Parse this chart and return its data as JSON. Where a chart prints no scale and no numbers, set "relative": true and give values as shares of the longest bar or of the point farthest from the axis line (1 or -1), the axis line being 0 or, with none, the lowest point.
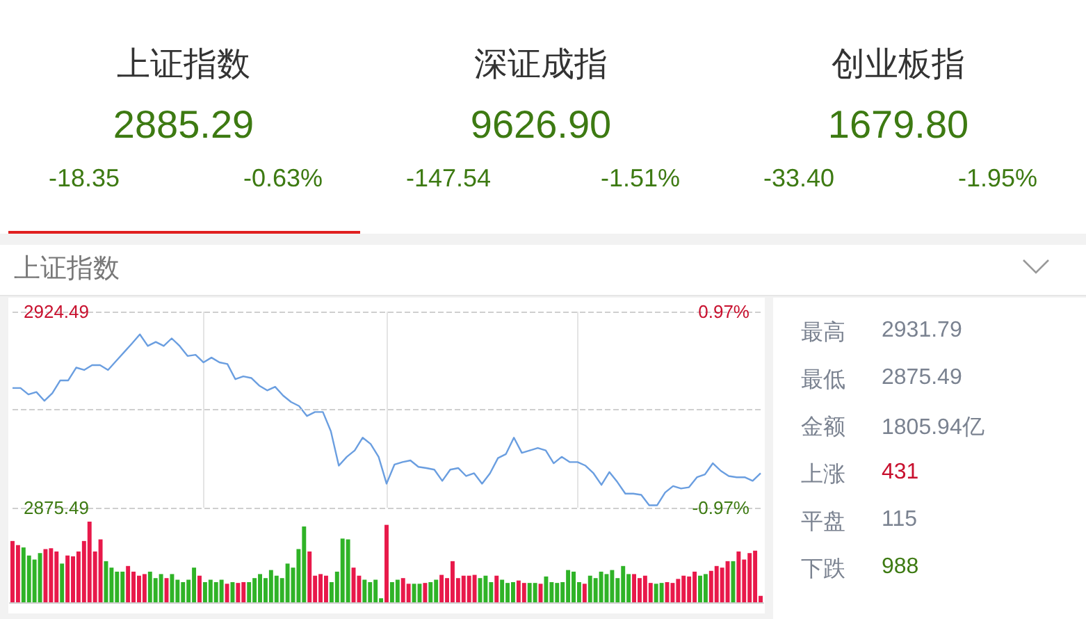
{
  "chart_data": [
    {
      "type": "other",
      "annotations": [
        "上证指数",
        "2885.29",
        "-18.35",
        "-0.63%",
        "深证成指",
        "9626.90",
        "-147.54",
        "-1.51%",
        "创业板指",
        "1679.80",
        "-33.40",
        "-1.95%",
        "上证指数"
      ]
    },
    {
      "type": "line",
      "categories": [
        null,
        null,
        null,
        null,
        null,
        null,
        null,
        null,
        null,
        null,
        null,
        null,
        null,
        null,
        null,
        null,
        null,
        null,
        null,
        null,
        null,
        null,
        null,
        null,
        null,
        null,
        null,
        null,
        null,
        null,
        null,
        null,
        null,
        null,
        null,
        null,
        null,
        null,
        null,
        null,
        null,
        null,
        null,
        null,
        null,
        null,
        null,
        null,
        null,
        null,
        null,
        null,
        null,
        null,
        null,
        null,
        null,
        null,
        null,
        null,
        null,
        null,
        null,
        null,
        null,
        null,
        null,
        null,
        null,
        null,
        null,
        null,
        null,
        null,
        null,
        null,
        null,
        null,
        null,
        null,
        null,
        null,
        null,
        null,
        null,
        null,
        null,
        null,
        null,
        null,
        null,
        null,
        null,
        null,
        null
      ],
      "series": [
        {
          "color": "#6a9ee0",
          "values": [
            2905.4,
            2905.4,
            2903.8,
            2904.4,
            2902.2,
            2904.1,
            2907.3,
            2907.3,
            2910.5,
            2909.9,
            2911.1,
            2911.1,
            2909.9,
            2912.1,
            2914.3,
            2916.5,
            2918.8,
            2915.9,
            2916.9,
            2915.9,
            2917.8,
            2915.9,
            2913.4,
            2913.7,
            2911.8,
            2913.0,
            2911.8,
            2911.4,
            2907.6,
            2908.3,
            2907.9,
            2906.0,
            2904.8,
            2905.7,
            2903.5,
            2901.9,
            2900.9,
            2898.4,
            2899.4,
            2899.4,
            2894.6,
            2886.0,
            2888.2,
            2889.8,
            2893.0,
            2891.4,
            2888.2,
            2881.5,
            2886.3,
            2886.9,
            2887.3,
            2885.7,
            2885.4,
            2885.0,
            2882.2,
            2885.0,
            2885.4,
            2883.4,
            2884.1,
            2881.5,
            2884.1,
            2887.9,
            2888.9,
            2893.0,
            2889.2,
            2889.8,
            2890.4,
            2889.8,
            2886.6,
            2888.2,
            2886.9,
            2886.9,
            2886.0,
            2884.1,
            2881.2,
            2884.4,
            2881.9,
            2879.0,
            2879.0,
            2878.7,
            2876.1,
            2876.1,
            2879.3,
            2880.9,
            2880.3,
            2880.6,
            2883.1,
            2883.8,
            2886.6,
            2884.7,
            2883.4,
            2883.1,
            2883.1,
            2882.2,
            2884.1
          ]
        }
      ],
      "ylim": [
        2875.49,
        2924.49
      ],
      "yticks": [
        2875.49,
        2924.49
      ],
      "ref_lines": [
        {
          "axis": "y",
          "value": 2899.99,
          "color": "#cfcfcf",
          "line_style": "dashed"
        }
      ],
      "y2lim": [
        -0.97,
        0.97
      ],
      "y2ticks": [
        {
          "value": -0.97,
          "label": "-0.97%"
        },
        {
          "value": 0.97,
          "label": "0.97%"
        }
      ],
      "grid": true,
      "marker": "none",
      "line_style": "solid"
    },
    {
      "type": "bar",
      "relative": true,
      "categories": [
        null,
        null,
        null,
        null,
        null,
        null,
        null,
        null,
        null,
        null,
        null,
        null,
        null,
        null,
        null,
        null,
        null,
        null,
        null,
        null,
        null,
        null,
        null,
        null,
        null,
        null,
        null,
        null,
        null,
        null,
        null,
        null,
        null,
        null,
        null,
        null,
        null,
        null,
        null,
        null,
        null,
        null,
        null,
        null,
        null,
        null,
        null,
        null,
        null,
        null,
        null,
        null,
        null,
        null,
        null,
        null,
        null,
        null,
        null,
        null,
        null,
        null,
        null,
        null,
        null,
        null,
        null,
        null,
        null,
        null,
        null,
        null,
        null,
        null,
        null,
        null,
        null,
        null,
        null,
        null,
        null,
        null,
        null,
        null,
        null,
        null,
        null,
        null,
        null,
        null,
        null,
        null,
        null,
        null,
        null,
        null,
        null,
        null,
        null,
        null,
        null,
        null,
        null,
        null,
        null,
        null,
        null,
        null,
        null,
        null,
        null,
        null,
        null,
        null,
        null,
        null,
        null,
        null,
        null,
        null,
        null,
        null,
        null,
        null,
        null,
        null,
        null,
        null,
        null,
        null,
        null,
        null,
        null,
        null,
        null,
        null,
        null
      ],
      "values": [
        0.76,
        0.71,
        0.68,
        0.58,
        0.53,
        0.61,
        0.66,
        0.67,
        0.63,
        0.48,
        0.58,
        0.57,
        0.63,
        0.76,
        1.0,
        0.63,
        0.78,
        0.51,
        0.43,
        0.38,
        0.38,
        0.45,
        0.38,
        0.33,
        0.35,
        0.38,
        0.3,
        0.35,
        0.3,
        0.35,
        0.28,
        0.25,
        0.28,
        0.43,
        0.33,
        0.25,
        0.28,
        0.25,
        0.28,
        0.23,
        0.25,
        0.24,
        0.25,
        0.25,
        0.3,
        0.35,
        0.3,
        0.4,
        0.33,
        0.3,
        0.48,
        0.43,
        0.66,
        0.94,
        0.63,
        0.33,
        0.35,
        0.33,
        0.25,
        0.38,
        0.79,
        0.78,
        0.43,
        0.33,
        0.28,
        0.25,
        0.28,
        0.05,
        0.96,
        0.25,
        0.28,
        0.3,
        0.23,
        0.23,
        0.23,
        0.24,
        0.25,
        0.28,
        0.34,
        0.3,
        0.51,
        0.3,
        0.33,
        0.33,
        0.34,
        0.3,
        0.33,
        0.25,
        0.33,
        0.28,
        0.24,
        0.25,
        0.27,
        0.24,
        0.24,
        0.24,
        0.23,
        0.32,
        0.25,
        0.24,
        0.25,
        0.4,
        0.38,
        0.25,
        0.23,
        0.33,
        0.3,
        0.38,
        0.35,
        0.4,
        0.3,
        0.45,
        0.35,
        0.35,
        0.3,
        0.33,
        0.24,
        0.23,
        0.24,
        0.25,
        0.24,
        0.29,
        0.33,
        0.32,
        0.38,
        0.33,
        0.35,
        0.39,
        0.45,
        0.43,
        0.51,
        0.51,
        0.63,
        0.53,
        0.61,
        0.64,
        0.08
      ],
      "colors": [
        "#e8194a",
        "#e8194a",
        "#2fb327",
        "#2fb327",
        "#2fb327",
        "#2fb327",
        "#e8194a",
        "#e8194a",
        "#e8194a",
        "#2fb327",
        "#e8194a",
        "#e8194a",
        "#e8194a",
        "#e8194a",
        "#e8194a",
        "#e8194a",
        "#e8194a",
        "#2fb327",
        "#2fb327",
        "#2fb327",
        "#2fb327",
        "#e8194a",
        "#e8194a",
        "#e8194a",
        "#e8194a",
        "#2fb327",
        "#2fb327",
        "#2fb327",
        "#e8194a",
        "#2fb327",
        "#2fb327",
        "#2fb327",
        "#2fb327",
        "#2fb327",
        "#e8194a",
        "#2fb327",
        "#2fb327",
        "#2fb327",
        "#2fb327",
        "#e8194a",
        "#2fb327",
        "#e8194a",
        "#e8194a",
        "#2fb327",
        "#2fb327",
        "#2fb327",
        "#2fb327",
        "#2fb327",
        "#2fb327",
        "#2fb327",
        "#2fb327",
        "#2fb327",
        "#2fb327",
        "#2fb327",
        "#e8194a",
        "#e8194a",
        "#e8194a",
        "#e8194a",
        "#2fb327",
        "#2fb327",
        "#2fb327",
        "#2fb327",
        "#e8194a",
        "#e8194a",
        "#2fb327",
        "#2fb327",
        "#2fb327",
        "#2fb327",
        "#e8194a",
        "#2fb327",
        "#2fb327",
        "#e8194a",
        "#e8194a",
        "#2fb327",
        "#2fb327",
        "#e8194a",
        "#2fb327",
        "#2fb327",
        "#e8194a",
        "#e8194a",
        "#e8194a",
        "#e8194a",
        "#e8194a",
        "#e8194a",
        "#e8194a",
        "#2fb327",
        "#2fb327",
        "#2fb327",
        "#e8194a",
        "#2fb327",
        "#2fb327",
        "#2fb327",
        "#e8194a",
        "#e8194a",
        "#2fb327",
        "#2fb327",
        "#e8194a",
        "#2fb327",
        "#2fb327",
        "#2fb327",
        "#2fb327",
        "#2fb327",
        "#2fb327",
        "#2fb327",
        "#e8194a",
        "#2fb327",
        "#2fb327",
        "#2fb327",
        "#2fb327",
        "#2fb327",
        "#2fb327",
        "#2fb327",
        "#2fb327",
        "#e8194a",
        "#e8194a",
        "#e8194a",
        "#e8194a",
        "#2fb327",
        "#2fb327",
        "#e8194a",
        "#e8194a",
        "#e8194a",
        "#e8194a",
        "#e8194a",
        "#e8194a",
        "#2fb327",
        "#2fb327",
        "#e8194a",
        "#e8194a",
        "#e8194a",
        "#e8194a",
        "#2fb327",
        "#e8194a",
        "#e8194a",
        "#e8194a",
        "#e8194a",
        "#e8194a"
      ]
    },
    {
      "type": "other",
      "annotations": [
        "最高",
        "2931.79",
        "最低",
        "2875.49",
        "金额",
        "1805.94亿",
        "上涨",
        "431",
        "平盘",
        "115",
        "下跌",
        "988"
      ]
    }
  ]
}
